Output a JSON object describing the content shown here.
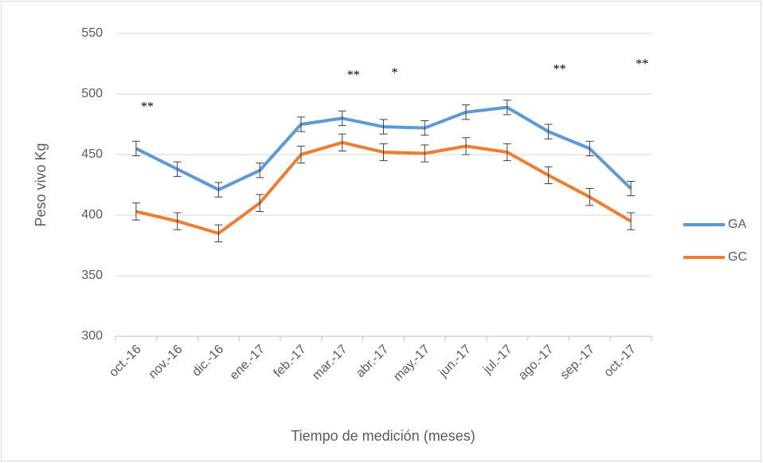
{
  "chart_data": {
    "type": "line",
    "x_label": "Tiempo de medición (meses)",
    "y_label": "Peso vivo Kg",
    "categories": [
      "oct.-16",
      "nov.-16",
      "dic.-16",
      "ene.-17",
      "feb.-17",
      "mar.-17",
      "abr.-17",
      "may.-17",
      "jun.-17",
      "jul.-17",
      "ago.-17",
      "sep.-17",
      "oct.-17"
    ],
    "series": [
      {
        "name": "GA",
        "color": "#5b9bd5",
        "values": [
          455,
          438,
          421,
          437,
          475,
          480,
          473,
          472,
          485,
          489,
          469,
          455,
          422
        ],
        "errors": [
          6,
          6,
          6,
          6,
          6,
          6,
          6,
          6,
          6,
          6,
          6,
          6,
          6
        ]
      },
      {
        "name": "GC",
        "color": "#ed7d31",
        "values": [
          403,
          395,
          385,
          410,
          450,
          460,
          452,
          451,
          457,
          452,
          433,
          415,
          395
        ],
        "errors": [
          7,
          7,
          7,
          7,
          7,
          7,
          7,
          7,
          7,
          7,
          7,
          7,
          7
        ]
      }
    ],
    "annotations": [
      {
        "text": "**",
        "x": "oct.-16",
        "y": 489
      },
      {
        "text": "**",
        "x": "mar.-17",
        "y": 515
      },
      {
        "text": "*",
        "x": "abr.-17",
        "y": 517
      },
      {
        "text": "**",
        "x": "ago.-17",
        "y": 520
      },
      {
        "text": "**",
        "x": "oct.-17",
        "y": 524
      }
    ],
    "ylim": [
      300,
      550
    ],
    "yticks": [
      300,
      350,
      400,
      450,
      500,
      550
    ],
    "grid": true,
    "legend": "right"
  }
}
